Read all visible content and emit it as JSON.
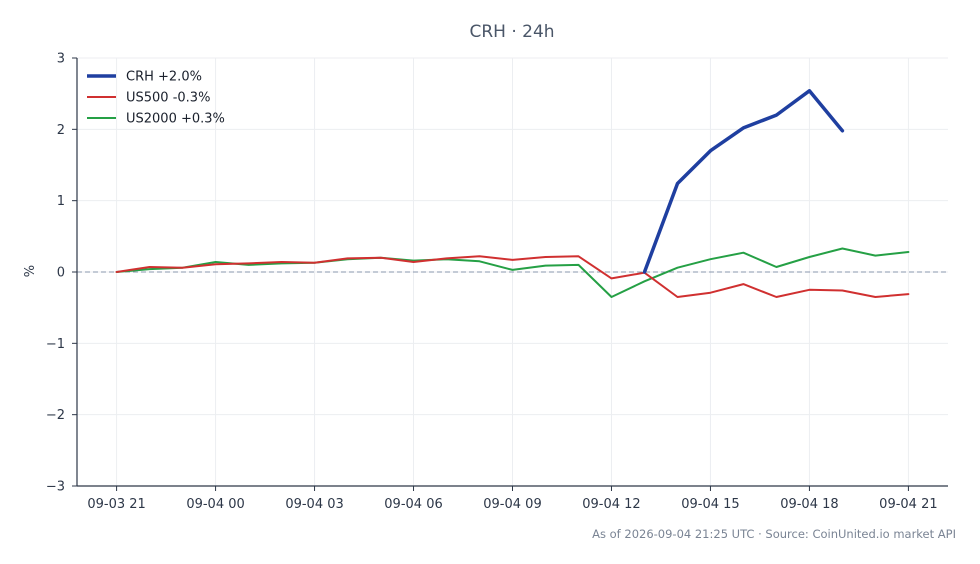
{
  "chart_data": {
    "type": "line",
    "title": "CRH · 24h",
    "ylabel": "%",
    "xlabel": "",
    "ylim": [
      -3,
      3
    ],
    "yticks": [
      3,
      2,
      1,
      0,
      -1,
      -2,
      -3
    ],
    "ytick_labels": [
      "3",
      "2",
      "1",
      "0",
      "−1",
      "−2",
      "−3"
    ],
    "xticks": [
      0,
      3,
      6,
      9,
      12,
      15,
      18,
      21,
      24
    ],
    "xtick_labels": [
      "09-03 21",
      "09-04 00",
      "09-04 03",
      "09-04 06",
      "09-04 09",
      "09-04 12",
      "09-04 15",
      "09-04 18",
      "09-04 21"
    ],
    "xlim": [
      -1.2,
      25.2
    ],
    "grid": true,
    "zero_line": true,
    "legend_position": "top-left",
    "series": [
      {
        "name": "CRH +2.0%",
        "color": "#1f3fa0",
        "x": [
          16,
          17,
          18,
          19,
          20,
          21,
          22
        ],
        "values": [
          0.0,
          1.24,
          1.7,
          2.02,
          2.2,
          2.54,
          1.98
        ]
      },
      {
        "name": "US500 -0.3%",
        "color": "#d03030",
        "x": [
          0,
          1,
          2,
          3,
          4,
          5,
          6,
          7,
          8,
          9,
          10,
          11,
          12,
          13,
          14,
          15,
          16,
          17,
          18,
          19,
          20,
          21,
          22,
          23,
          24
        ],
        "values": [
          0.0,
          0.07,
          0.06,
          0.11,
          0.12,
          0.14,
          0.13,
          0.19,
          0.2,
          0.14,
          0.19,
          0.22,
          0.17,
          0.21,
          0.22,
          -0.09,
          -0.01,
          -0.35,
          -0.29,
          -0.17,
          -0.35,
          -0.25,
          -0.26,
          -0.35,
          -0.31
        ]
      },
      {
        "name": "US2000 +0.3%",
        "color": "#25a045",
        "x": [
          0,
          1,
          2,
          3,
          4,
          5,
          6,
          7,
          8,
          9,
          10,
          11,
          12,
          13,
          14,
          15,
          16,
          17,
          18,
          19,
          20,
          21,
          22,
          23,
          24
        ],
        "values": [
          0.0,
          0.04,
          0.06,
          0.14,
          0.1,
          0.12,
          0.13,
          0.18,
          0.2,
          0.16,
          0.18,
          0.15,
          0.03,
          0.09,
          0.1,
          -0.35,
          -0.13,
          0.06,
          0.18,
          0.27,
          0.07,
          0.21,
          0.33,
          0.23,
          0.28
        ]
      }
    ],
    "footer": "As of 2026-09-04 21:25 UTC · Source: CoinUnited.io market API"
  }
}
